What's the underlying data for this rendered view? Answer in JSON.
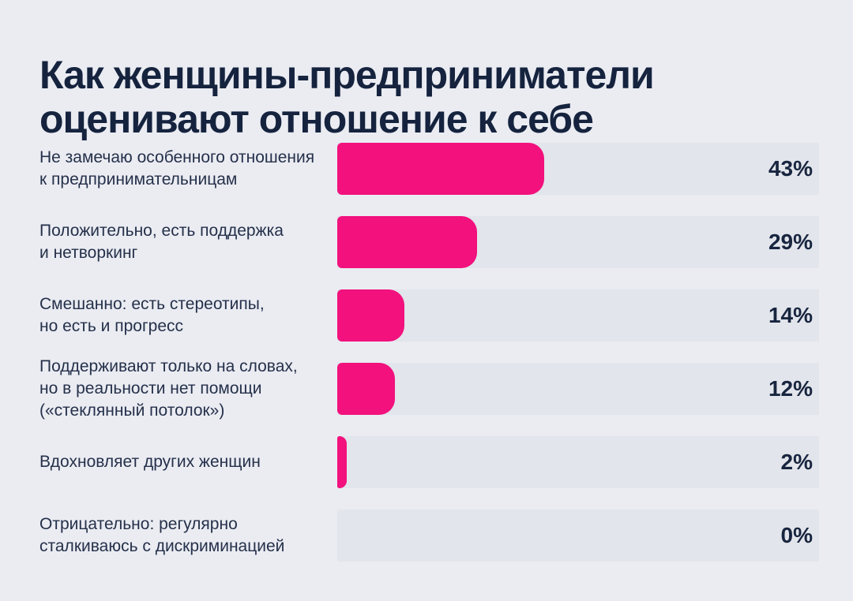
{
  "title": "Как женщины-предприниматели\nоценивают отношение к себе",
  "chart_data": {
    "type": "bar",
    "orientation": "horizontal",
    "title": "Как женщины-предприниматели оценивают отношение к себе",
    "categories": [
      "Не замечаю особенного отношения\nк предпринимательницам",
      "Положительно, есть поддержка\nи нетворкинг",
      "Смешанно: есть стереотипы,\nно есть и прогресс",
      "Поддерживают только на словах,\nно в реальности нет помощи\n(«стеклянный потолок»)",
      "Вдохновляет других женщин",
      "Отрицательно: регулярно\nсталкиваюсь с дискриминацией"
    ],
    "values": [
      43,
      29,
      14,
      12,
      2,
      0
    ],
    "value_labels": [
      "43%",
      "29%",
      "14%",
      "12%",
      "2%",
      "0%"
    ],
    "unit": "%",
    "xlim": [
      0,
      100
    ],
    "grid": false,
    "legend": false,
    "colors": {
      "bar": "#f2117d",
      "track": "#e2e5eb",
      "background": "#eaecf2",
      "title_text": "#15233e",
      "label_text": "#25304a",
      "value_text": "#18253f"
    }
  }
}
